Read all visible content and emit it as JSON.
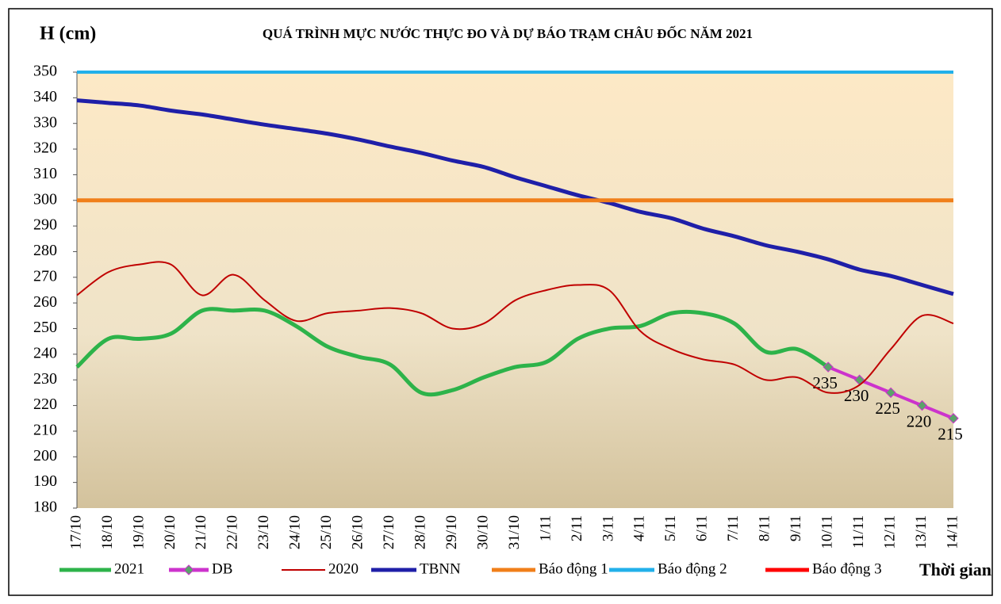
{
  "chart_data": {
    "type": "line",
    "title": "QUÁ TRÌNH MỰC NƯỚC THỰC ĐO VÀ DỰ BÁO TRẠM CHÂU ĐỐC NĂM  2021",
    "ylabel": "H (cm)",
    "xlabel": "Thời gian",
    "categories": [
      "17/10",
      "18/10",
      "19/10",
      "20/10",
      "21/10",
      "22/10",
      "23/10",
      "24/10",
      "25/10",
      "26/10",
      "27/10",
      "28/10",
      "29/10",
      "30/10",
      "31/10",
      "1/11",
      "2/11",
      "3/11",
      "4/11",
      "5/11",
      "6/11",
      "7/11",
      "8/11",
      "9/11",
      "10/11",
      "11/11",
      "12/11",
      "13/11",
      "14/11"
    ],
    "ylim": [
      180,
      350
    ],
    "yticks": [
      180,
      190,
      200,
      210,
      220,
      230,
      240,
      250,
      260,
      270,
      280,
      290,
      300,
      310,
      320,
      330,
      340,
      350
    ],
    "series": [
      {
        "name": "2021",
        "color": "#2db34a",
        "values": [
          235,
          246,
          246,
          248,
          257,
          257,
          257,
          251,
          243,
          239,
          236,
          225,
          226,
          231,
          235,
          237,
          246,
          250,
          251,
          256,
          256,
          252,
          241,
          242,
          235,
          null,
          null,
          null,
          null
        ]
      },
      {
        "name": "DB",
        "color": "#cc33cc",
        "marker_color": "#5aa36a",
        "values": [
          null,
          null,
          null,
          null,
          null,
          null,
          null,
          null,
          null,
          null,
          null,
          null,
          null,
          null,
          null,
          null,
          null,
          null,
          null,
          null,
          null,
          null,
          null,
          null,
          235,
          230,
          225,
          220,
          215
        ]
      },
      {
        "name": "2020",
        "color": "#c00000",
        "values": [
          263,
          272,
          275,
          275,
          263,
          271,
          261,
          253,
          256,
          257,
          258,
          256,
          250,
          252,
          261,
          265,
          267,
          265,
          249,
          242,
          238,
          236,
          230,
          231,
          225,
          228,
          242,
          255,
          252
        ]
      },
      {
        "name": "TBNN",
        "color": "#1f1fa8",
        "values": [
          339,
          338,
          337,
          335,
          333.5,
          331.5,
          329.5,
          327.8,
          326,
          323.7,
          321,
          318.5,
          315.5,
          313,
          309,
          305.5,
          302,
          299,
          295.5,
          293,
          289,
          286,
          282.5,
          280,
          277,
          273,
          270.5,
          267,
          263.5
        ]
      },
      {
        "name": "Báo động 1",
        "color": "#f07f1a",
        "values": [
          300,
          300,
          300,
          300,
          300,
          300,
          300,
          300,
          300,
          300,
          300,
          300,
          300,
          300,
          300,
          300,
          300,
          300,
          300,
          300,
          300,
          300,
          300,
          300,
          300,
          300,
          300,
          300,
          300
        ]
      },
      {
        "name": "Báo động 2",
        "color": "#22b0ea",
        "values": [
          350,
          350,
          350,
          350,
          350,
          350,
          350,
          350,
          350,
          350,
          350,
          350,
          350,
          350,
          350,
          350,
          350,
          350,
          350,
          350,
          350,
          350,
          350,
          350,
          350,
          350,
          350,
          350,
          350
        ]
      },
      {
        "name": "Báo động 3",
        "color": "#ff0000"
      }
    ]
  }
}
